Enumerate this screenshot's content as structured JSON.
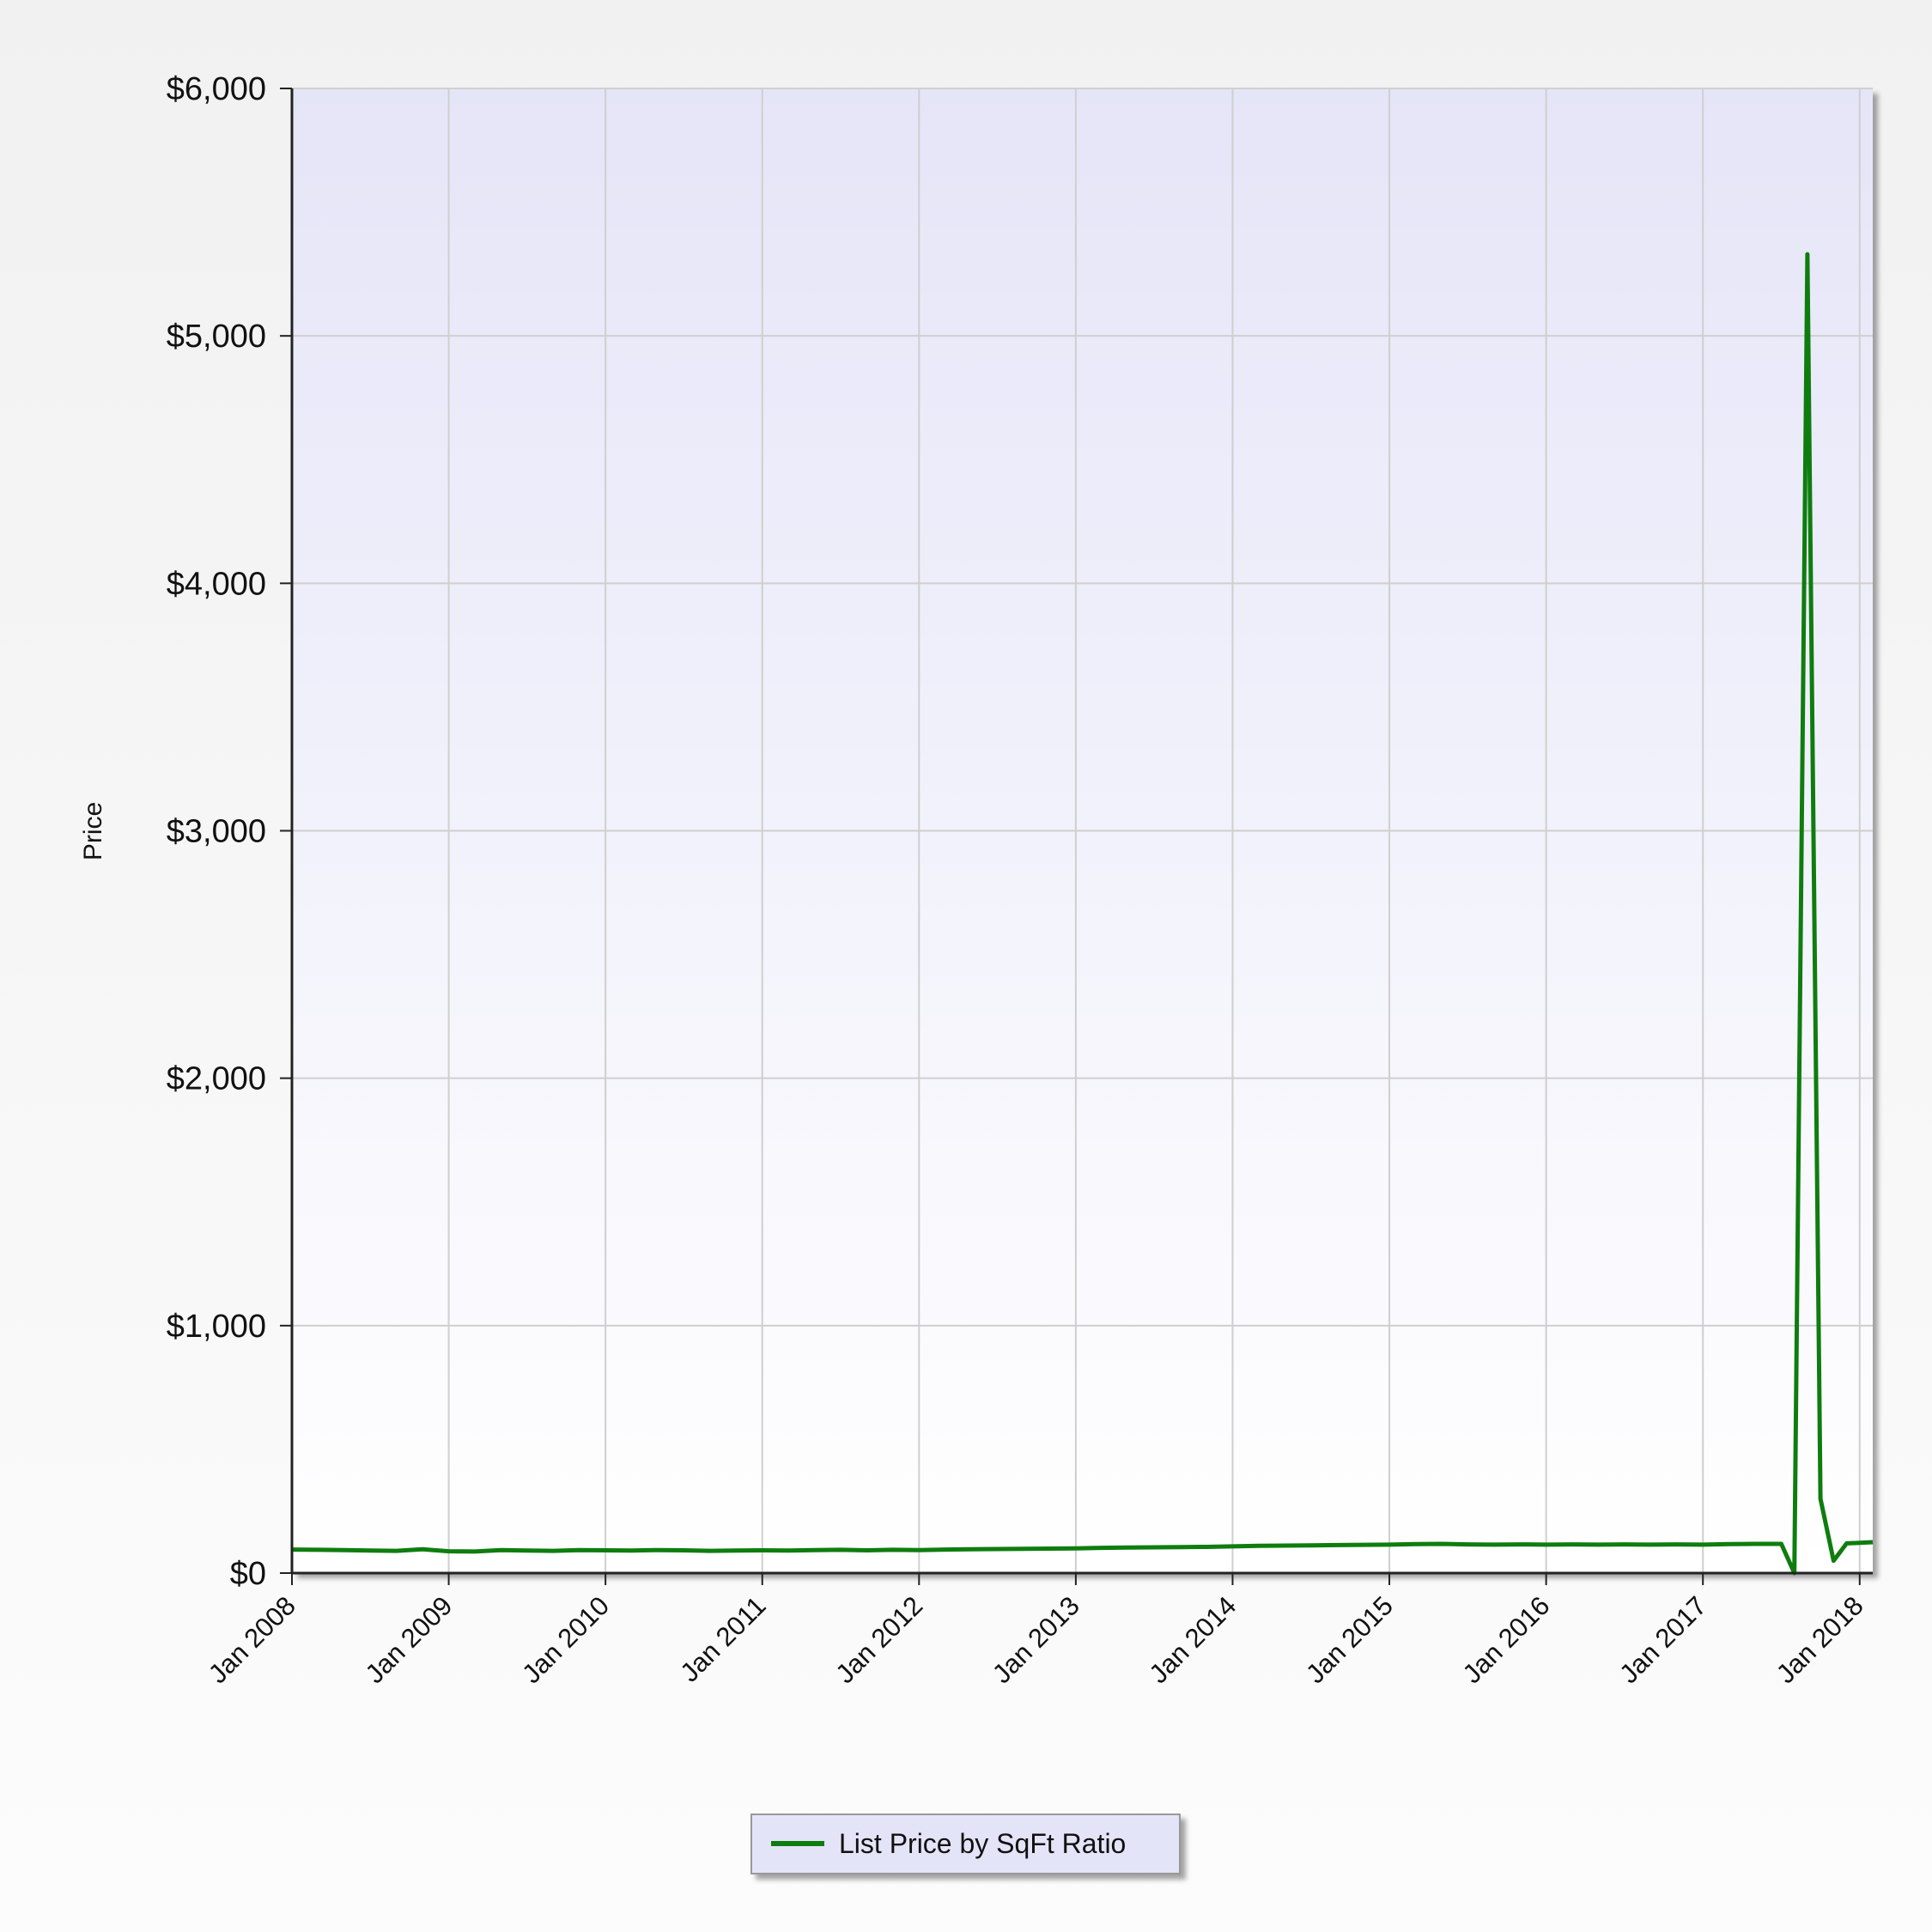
{
  "chart_data": {
    "type": "line",
    "ylabel": "Price",
    "xlabel": "",
    "ylim": [
      0,
      6000
    ],
    "y_ticks": [
      0,
      1000,
      2000,
      3000,
      4000,
      5000,
      6000
    ],
    "y_tick_labels": [
      "$0",
      "$1,000",
      "$2,000",
      "$3,000",
      "$4,000",
      "$5,000",
      "$6,000"
    ],
    "xlim": [
      "2008-01",
      "2018-02"
    ],
    "x_ticks": [
      "2008-01",
      "2009-01",
      "2010-01",
      "2011-01",
      "2012-01",
      "2013-01",
      "2014-01",
      "2015-01",
      "2016-01",
      "2017-01",
      "2018-01"
    ],
    "x_tick_labels": [
      "Jan 2008",
      "Jan 2009",
      "Jan 2010",
      "Jan 2011",
      "Jan 2012",
      "Jan 2013",
      "Jan 2014",
      "Jan 2015",
      "Jan 2016",
      "Jan 2017",
      "Jan 2018"
    ],
    "grid": true,
    "legend_position": "bottom-center",
    "series": [
      {
        "name": "List Price by SqFt Ratio",
        "color": "#0e7d0e",
        "points": [
          [
            "2008-01",
            95
          ],
          [
            "2008-03",
            94
          ],
          [
            "2008-05",
            93
          ],
          [
            "2008-07",
            91
          ],
          [
            "2008-09",
            90
          ],
          [
            "2008-11",
            96
          ],
          [
            "2009-01",
            88
          ],
          [
            "2009-03",
            87
          ],
          [
            "2009-05",
            93
          ],
          [
            "2009-07",
            91
          ],
          [
            "2009-09",
            90
          ],
          [
            "2009-11",
            93
          ],
          [
            "2010-01",
            92
          ],
          [
            "2010-03",
            91
          ],
          [
            "2010-05",
            93
          ],
          [
            "2010-07",
            92
          ],
          [
            "2010-09",
            90
          ],
          [
            "2010-11",
            91
          ],
          [
            "2011-01",
            92
          ],
          [
            "2011-03",
            91
          ],
          [
            "2011-05",
            93
          ],
          [
            "2011-07",
            94
          ],
          [
            "2011-09",
            92
          ],
          [
            "2011-11",
            94
          ],
          [
            "2012-01",
            93
          ],
          [
            "2012-03",
            95
          ],
          [
            "2012-05",
            96
          ],
          [
            "2012-07",
            97
          ],
          [
            "2012-09",
            98
          ],
          [
            "2012-11",
            99
          ],
          [
            "2013-01",
            100
          ],
          [
            "2013-03",
            102
          ],
          [
            "2013-05",
            103
          ],
          [
            "2013-07",
            104
          ],
          [
            "2013-09",
            105
          ],
          [
            "2013-11",
            106
          ],
          [
            "2014-01",
            108
          ],
          [
            "2014-03",
            110
          ],
          [
            "2014-05",
            111
          ],
          [
            "2014-07",
            112
          ],
          [
            "2014-09",
            113
          ],
          [
            "2014-11",
            114
          ],
          [
            "2015-01",
            115
          ],
          [
            "2015-03",
            117
          ],
          [
            "2015-05",
            118
          ],
          [
            "2015-07",
            116
          ],
          [
            "2015-09",
            115
          ],
          [
            "2015-11",
            116
          ],
          [
            "2016-01",
            115
          ],
          [
            "2016-03",
            116
          ],
          [
            "2016-05",
            115
          ],
          [
            "2016-07",
            116
          ],
          [
            "2016-09",
            115
          ],
          [
            "2016-11",
            116
          ],
          [
            "2017-01",
            115
          ],
          [
            "2017-03",
            117
          ],
          [
            "2017-05",
            118
          ],
          [
            "2017-07",
            118
          ],
          [
            "2017-08",
            0
          ],
          [
            "2017-09",
            5330
          ],
          [
            "2017-10",
            300
          ],
          [
            "2017-11",
            50
          ],
          [
            "2017-12",
            120
          ],
          [
            "2018-01",
            122
          ],
          [
            "2018-02",
            125
          ]
        ]
      }
    ]
  }
}
